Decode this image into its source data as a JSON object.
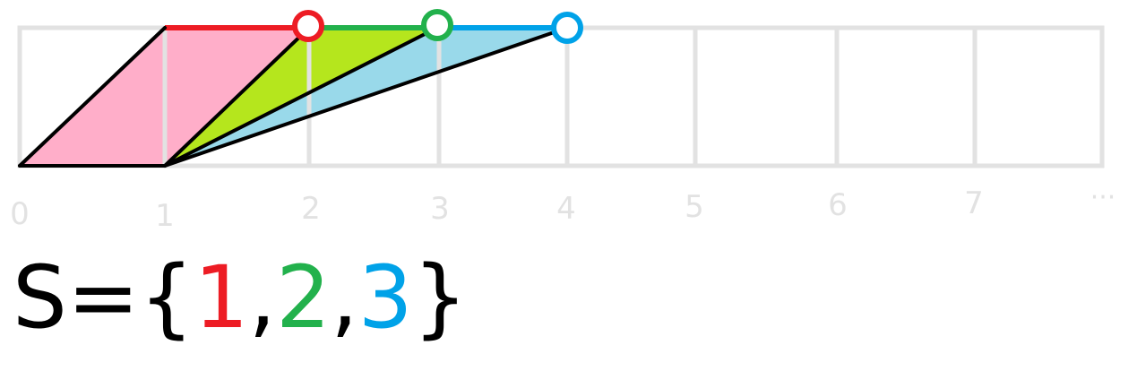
{
  "number_line": {
    "tick_labels": [
      "0",
      "1",
      "2",
      "3",
      "4",
      "5",
      "6",
      "7",
      "···"
    ]
  },
  "formula": {
    "prefix": "S=",
    "open_brace": "{",
    "elements": [
      {
        "value": "1",
        "color": "#ed1c24"
      },
      {
        "value": "2",
        "color": "#22b14c"
      },
      {
        "value": "3",
        "color": "#00a2e8"
      }
    ],
    "separator": ",",
    "close_brace": "}"
  },
  "colors": {
    "grid": "#e2e2e2",
    "edge": "#000000",
    "red": "#ed1c24",
    "green": "#22b14c",
    "blue": "#00a2e8",
    "pink_fill": "#ffaec9",
    "green_fill": "#b5e61d",
    "blue_fill": "#99d9ea"
  }
}
